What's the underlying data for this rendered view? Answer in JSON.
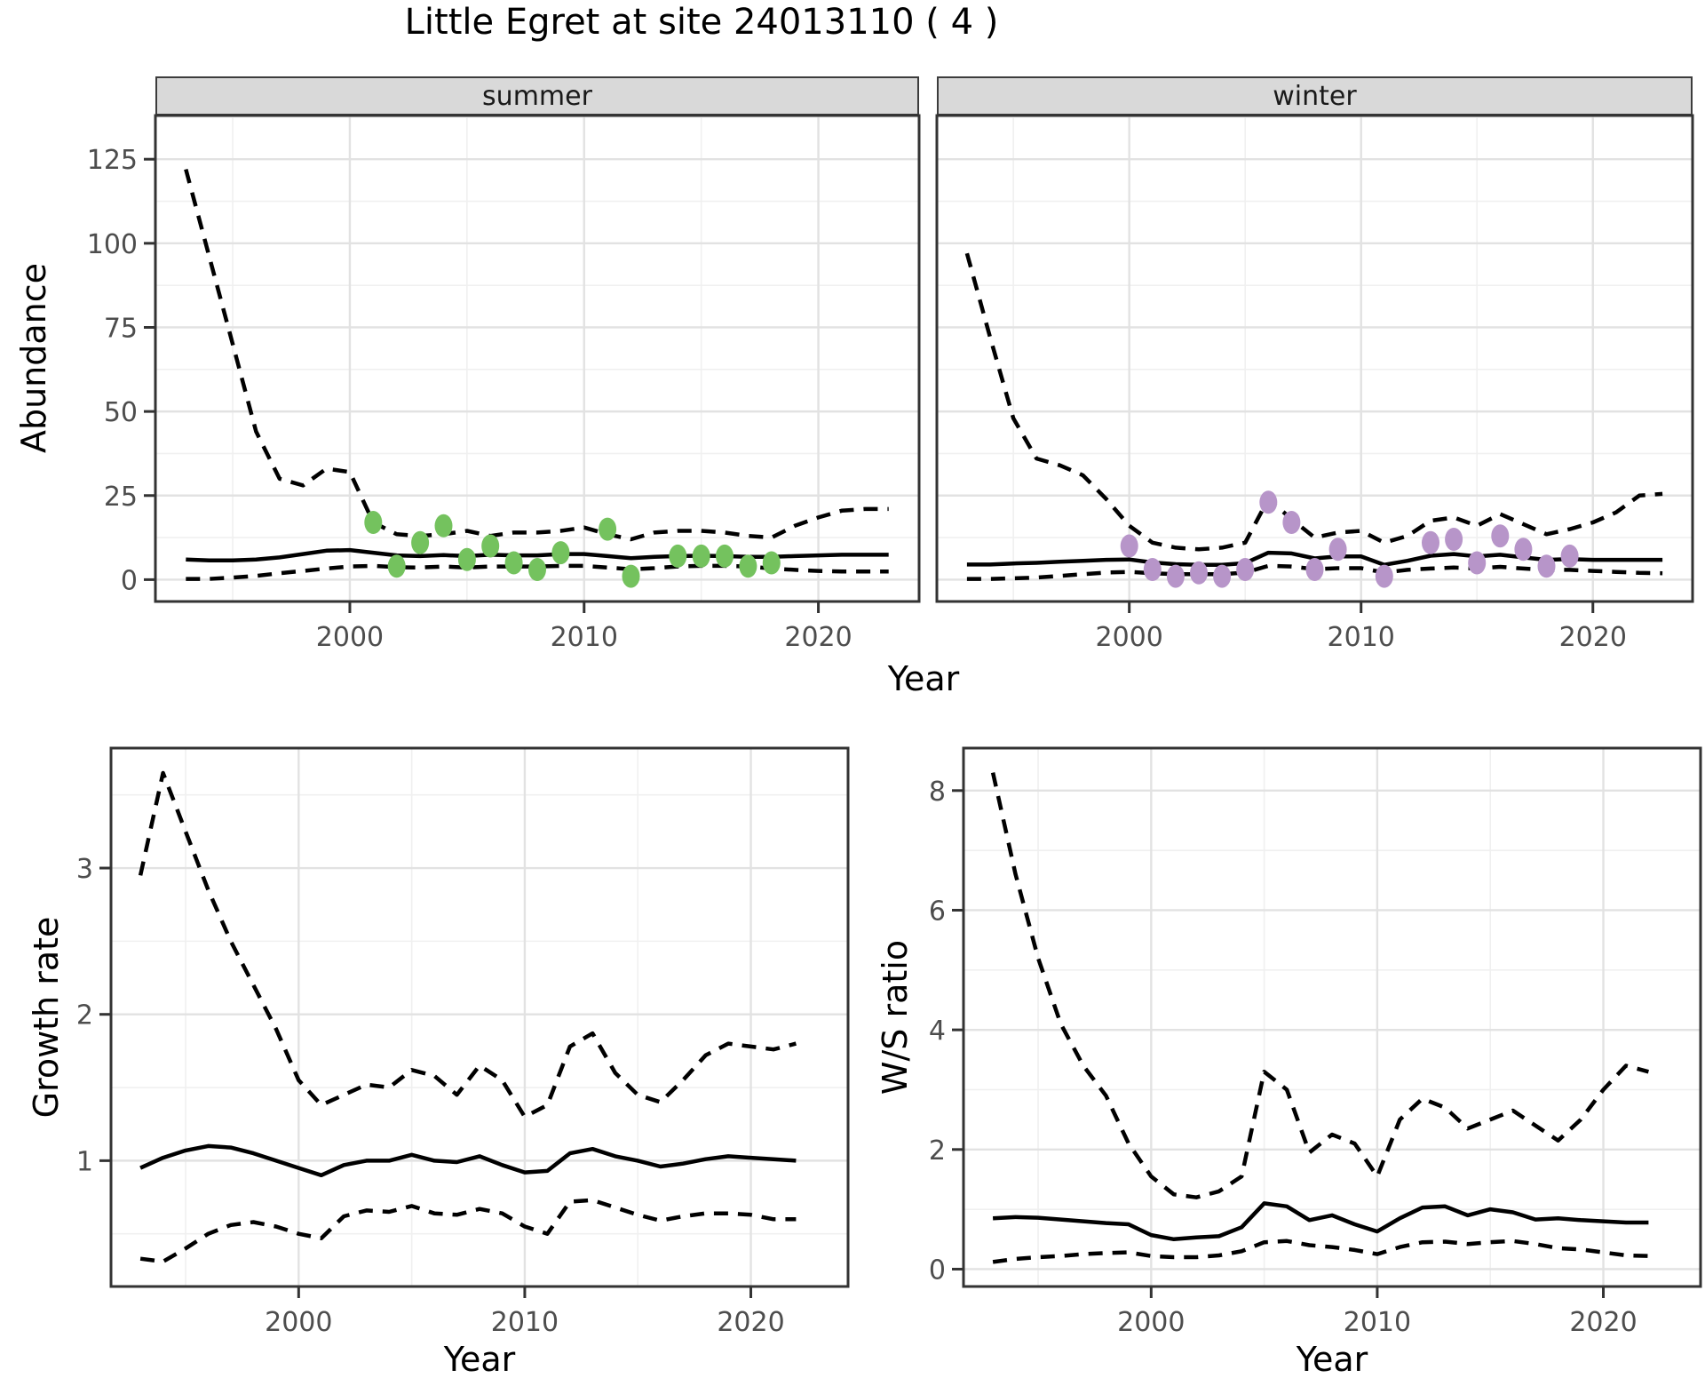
{
  "title": "Little Egret at site 24013110 ( 4 )",
  "abundance": {
    "ylabel": "Abundance",
    "xlabel": "Year",
    "facets": [
      "summer",
      "winter"
    ]
  },
  "growth": {
    "ylabel": "Growth rate",
    "xlabel": "Year"
  },
  "ws": {
    "ylabel": "W/S ratio",
    "xlabel": "Year"
  },
  "colors": {
    "summer_points": "#74c25e",
    "winter_points": "#b795c9",
    "line": "#000000",
    "grid_major": "#e2e2e2",
    "grid_minor": "#f0f0f0",
    "panel_border": "#333333",
    "strip_bg": "#d9d9d9",
    "tick_label": "#4d4d4d"
  },
  "chart_data": [
    {
      "type": "line",
      "facet": "summer",
      "xlabel": "Year",
      "ylabel": "Abundance",
      "xlim": [
        1991.7,
        2024.3
      ],
      "ylim": [
        -6.5,
        138
      ],
      "xticks": [
        2000,
        2010,
        2020
      ],
      "yticks": [
        0,
        25,
        50,
        75,
        100,
        125
      ],
      "grid": true,
      "legend": "none",
      "series": [
        {
          "name": "upper_95ci",
          "style": "dashed",
          "x": [
            1993,
            1994,
            1995,
            1996,
            1997,
            1998,
            1999,
            2000,
            2001,
            2002,
            2003,
            2004,
            2005,
            2006,
            2007,
            2008,
            2009,
            2010,
            2011,
            2012,
            2013,
            2014,
            2015,
            2016,
            2017,
            2018,
            2019,
            2020,
            2021,
            2022,
            2023
          ],
          "y": [
            122,
            96,
            70,
            44,
            30,
            28,
            33,
            32,
            17,
            13.5,
            13,
            13.5,
            14.5,
            13,
            14,
            14,
            14.5,
            15.5,
            13.5,
            12,
            14,
            14.5,
            14.5,
            14,
            13,
            12.5,
            16,
            18.5,
            20.5,
            21,
            21
          ]
        },
        {
          "name": "mean",
          "style": "solid",
          "x": [
            1993,
            1994,
            1995,
            1996,
            1997,
            1998,
            1999,
            2000,
            2001,
            2002,
            2003,
            2004,
            2005,
            2006,
            2007,
            2008,
            2009,
            2010,
            2011,
            2012,
            2013,
            2014,
            2015,
            2016,
            2017,
            2018,
            2019,
            2020,
            2021,
            2022,
            2023
          ],
          "y": [
            6,
            5.7,
            5.7,
            6,
            6.6,
            7.6,
            8.6,
            8.8,
            8,
            7.2,
            7,
            7.3,
            7,
            7.4,
            7.2,
            7.2,
            7.6,
            7.6,
            7,
            6.4,
            6.8,
            7,
            7.1,
            7,
            6.8,
            6.8,
            7,
            7.2,
            7.4,
            7.4,
            7.4
          ]
        },
        {
          "name": "lower_95ci",
          "style": "dashed",
          "x": [
            1993,
            1994,
            1995,
            1996,
            1997,
            1998,
            1999,
            2000,
            2001,
            2002,
            2003,
            2004,
            2005,
            2006,
            2007,
            2008,
            2009,
            2010,
            2011,
            2012,
            2013,
            2014,
            2015,
            2016,
            2017,
            2018,
            2019,
            2020,
            2021,
            2022,
            2023
          ],
          "y": [
            0.2,
            0.2,
            0.6,
            1.1,
            1.9,
            2.6,
            3.3,
            3.9,
            4.1,
            3.7,
            3.6,
            3.9,
            3.6,
            3.9,
            3.9,
            3.9,
            4.1,
            4.1,
            3.6,
            3.1,
            3.4,
            3.9,
            4.1,
            4.1,
            3.9,
            3.3,
            2.9,
            2.6,
            2.4,
            2.4,
            2.4
          ]
        }
      ],
      "points": {
        "name": "observed_counts",
        "color": "#74c25e",
        "x": [
          2001,
          2002,
          2003,
          2004,
          2005,
          2006,
          2007,
          2008,
          2009,
          2011,
          2012,
          2014,
          2015,
          2016,
          2017,
          2018
        ],
        "y": [
          17,
          4,
          11,
          16,
          6,
          10,
          5,
          3,
          8,
          15,
          1,
          7,
          7,
          7,
          4,
          5
        ]
      }
    },
    {
      "type": "line",
      "facet": "winter",
      "xlabel": "Year",
      "ylabel": "Abundance",
      "xlim": [
        1991.7,
        2024.3
      ],
      "ylim": [
        -6.5,
        138
      ],
      "xticks": [
        2000,
        2010,
        2020
      ],
      "yticks": [
        0,
        25,
        50,
        75,
        100,
        125
      ],
      "grid": true,
      "legend": "none",
      "series": [
        {
          "name": "upper_95ci",
          "style": "dashed",
          "x": [
            1993,
            1994,
            1995,
            1996,
            1997,
            1998,
            1999,
            2000,
            2001,
            2002,
            2003,
            2004,
            2005,
            2006,
            2007,
            2008,
            2009,
            2010,
            2011,
            2012,
            2013,
            2014,
            2015,
            2016,
            2017,
            2018,
            2019,
            2020,
            2021,
            2022,
            2023
          ],
          "y": [
            97,
            72,
            48,
            36,
            34,
            31,
            24,
            16,
            11,
            9.5,
            9,
            9.5,
            11,
            24,
            18,
            12.5,
            14,
            14.5,
            11,
            13,
            17.5,
            18.5,
            16,
            19.5,
            16.5,
            13.5,
            15,
            17,
            20,
            25,
            25.5
          ]
        },
        {
          "name": "mean",
          "style": "solid",
          "x": [
            1993,
            1994,
            1995,
            1996,
            1997,
            1998,
            1999,
            2000,
            2001,
            2002,
            2003,
            2004,
            2005,
            2006,
            2007,
            2008,
            2009,
            2010,
            2011,
            2012,
            2013,
            2014,
            2015,
            2016,
            2017,
            2018,
            2019,
            2020,
            2021,
            2022,
            2023
          ],
          "y": [
            4.5,
            4.5,
            4.8,
            5,
            5.3,
            5.6,
            5.9,
            6,
            5.1,
            4.6,
            4.4,
            4.4,
            4.9,
            8,
            7.8,
            6.3,
            6.9,
            6.9,
            4.4,
            5.6,
            7.1,
            7.6,
            6.9,
            7.4,
            6.6,
            5.9,
            6.1,
            5.9,
            5.9,
            5.9,
            5.9
          ]
        },
        {
          "name": "lower_95ci",
          "style": "dashed",
          "x": [
            1993,
            1994,
            1995,
            1996,
            1997,
            1998,
            1999,
            2000,
            2001,
            2002,
            2003,
            2004,
            2005,
            2006,
            2007,
            2008,
            2009,
            2010,
            2011,
            2012,
            2013,
            2014,
            2015,
            2016,
            2017,
            2018,
            2019,
            2020,
            2021,
            2022,
            2023
          ],
          "y": [
            0.2,
            0.2,
            0.4,
            0.6,
            1.1,
            1.6,
            2.1,
            2.3,
            1.9,
            1.6,
            1.6,
            1.6,
            2.1,
            4.1,
            3.9,
            3.1,
            3.4,
            3.4,
            2.1,
            2.9,
            3.3,
            3.6,
            3.3,
            3.8,
            3.3,
            2.9,
            2.9,
            2.6,
            2.3,
            2,
            1.9
          ]
        }
      ],
      "points": {
        "name": "observed_counts",
        "color": "#b795c9",
        "x": [
          2000,
          2001,
          2002,
          2003,
          2004,
          2005,
          2006,
          2007,
          2008,
          2009,
          2011,
          2013,
          2014,
          2015,
          2016,
          2017,
          2018,
          2019
        ],
        "y": [
          10,
          3,
          1,
          2,
          1,
          3,
          23,
          17,
          3,
          9,
          1,
          11,
          12,
          5,
          13,
          9,
          4,
          7
        ]
      }
    },
    {
      "type": "line",
      "facet": "",
      "xlabel": "Year",
      "ylabel": "Growth rate",
      "xlim": [
        1991.7,
        2024.3
      ],
      "ylim": [
        0.14,
        3.82
      ],
      "xticks": [
        2000,
        2010,
        2020
      ],
      "yticks": [
        1,
        2,
        3
      ],
      "grid": true,
      "legend": "none",
      "series": [
        {
          "name": "upper_95ci",
          "style": "dashed",
          "x": [
            1993,
            1994,
            1995,
            1996,
            1997,
            1998,
            1999,
            2000,
            2001,
            2002,
            2003,
            2004,
            2005,
            2006,
            2007,
            2008,
            2009,
            2010,
            2011,
            2012,
            2013,
            2014,
            2015,
            2016,
            2017,
            2018,
            2019,
            2020,
            2021,
            2022
          ],
          "y": [
            2.95,
            3.65,
            3.25,
            2.85,
            2.5,
            2.2,
            1.9,
            1.55,
            1.38,
            1.45,
            1.52,
            1.5,
            1.62,
            1.58,
            1.45,
            1.65,
            1.55,
            1.3,
            1.38,
            1.78,
            1.87,
            1.6,
            1.45,
            1.4,
            1.55,
            1.72,
            1.8,
            1.78,
            1.76,
            1.8
          ]
        },
        {
          "name": "mean",
          "style": "solid",
          "x": [
            1993,
            1994,
            1995,
            1996,
            1997,
            1998,
            1999,
            2000,
            2001,
            2002,
            2003,
            2004,
            2005,
            2006,
            2007,
            2008,
            2009,
            2010,
            2011,
            2012,
            2013,
            2014,
            2015,
            2016,
            2017,
            2018,
            2019,
            2020,
            2021,
            2022
          ],
          "y": [
            0.95,
            1.02,
            1.07,
            1.1,
            1.09,
            1.05,
            1,
            0.95,
            0.9,
            0.97,
            1,
            1,
            1.04,
            1,
            0.99,
            1.03,
            0.97,
            0.92,
            0.93,
            1.05,
            1.08,
            1.03,
            1,
            0.96,
            0.98,
            1.01,
            1.03,
            1.02,
            1.01,
            1
          ]
        },
        {
          "name": "lower_95ci",
          "style": "dashed",
          "x": [
            1993,
            1994,
            1995,
            1996,
            1997,
            1998,
            1999,
            2000,
            2001,
            2002,
            2003,
            2004,
            2005,
            2006,
            2007,
            2008,
            2009,
            2010,
            2011,
            2012,
            2013,
            2014,
            2015,
            2016,
            2017,
            2018,
            2019,
            2020,
            2021,
            2022
          ],
          "y": [
            0.33,
            0.31,
            0.4,
            0.5,
            0.56,
            0.58,
            0.55,
            0.5,
            0.47,
            0.62,
            0.66,
            0.65,
            0.69,
            0.64,
            0.63,
            0.67,
            0.64,
            0.55,
            0.5,
            0.72,
            0.73,
            0.68,
            0.63,
            0.59,
            0.62,
            0.64,
            0.64,
            0.63,
            0.6,
            0.6
          ]
        }
      ]
    },
    {
      "type": "line",
      "facet": "",
      "xlabel": "Year",
      "ylabel": "W/S ratio",
      "xlim": [
        1991.7,
        2024.3
      ],
      "ylim": [
        -0.29,
        8.71
      ],
      "xticks": [
        2000,
        2010,
        2020
      ],
      "yticks": [
        0,
        2,
        4,
        6,
        8
      ],
      "grid": true,
      "legend": "none",
      "series": [
        {
          "name": "upper_95ci",
          "style": "dashed",
          "x": [
            1993,
            1994,
            1995,
            1996,
            1997,
            1998,
            1999,
            2000,
            2001,
            2002,
            2003,
            2004,
            2005,
            2006,
            2007,
            2008,
            2009,
            2010,
            2011,
            2012,
            2013,
            2014,
            2015,
            2016,
            2017,
            2018,
            2019,
            2020,
            2021,
            2022
          ],
          "y": [
            8.3,
            6.6,
            5.2,
            4.1,
            3.4,
            2.9,
            2.1,
            1.55,
            1.25,
            1.2,
            1.3,
            1.55,
            3.3,
            3,
            1.95,
            2.25,
            2.1,
            1.55,
            2.5,
            2.85,
            2.7,
            2.35,
            2.5,
            2.65,
            2.4,
            2.15,
            2.5,
            3,
            3.4,
            3.3
          ]
        },
        {
          "name": "mean",
          "style": "solid",
          "x": [
            1993,
            1994,
            1995,
            1996,
            1997,
            1998,
            1999,
            2000,
            2001,
            2002,
            2003,
            2004,
            2005,
            2006,
            2007,
            2008,
            2009,
            2010,
            2011,
            2012,
            2013,
            2014,
            2015,
            2016,
            2017,
            2018,
            2019,
            2020,
            2021,
            2022
          ],
          "y": [
            0.85,
            0.87,
            0.86,
            0.83,
            0.8,
            0.77,
            0.75,
            0.57,
            0.5,
            0.53,
            0.55,
            0.7,
            1.1,
            1.05,
            0.82,
            0.9,
            0.75,
            0.63,
            0.85,
            1.03,
            1.05,
            0.9,
            1,
            0.95,
            0.83,
            0.85,
            0.82,
            0.8,
            0.78,
            0.78
          ]
        },
        {
          "name": "lower_95ci",
          "style": "dashed",
          "x": [
            1993,
            1994,
            1995,
            1996,
            1997,
            1998,
            1999,
            2000,
            2001,
            2002,
            2003,
            2004,
            2005,
            2006,
            2007,
            2008,
            2009,
            2010,
            2011,
            2012,
            2013,
            2014,
            2015,
            2016,
            2017,
            2018,
            2019,
            2020,
            2021,
            2022
          ],
          "y": [
            0.12,
            0.17,
            0.2,
            0.22,
            0.25,
            0.27,
            0.28,
            0.22,
            0.2,
            0.2,
            0.23,
            0.3,
            0.45,
            0.47,
            0.4,
            0.37,
            0.32,
            0.25,
            0.37,
            0.45,
            0.46,
            0.42,
            0.45,
            0.47,
            0.42,
            0.35,
            0.33,
            0.28,
            0.23,
            0.22
          ]
        }
      ]
    }
  ]
}
